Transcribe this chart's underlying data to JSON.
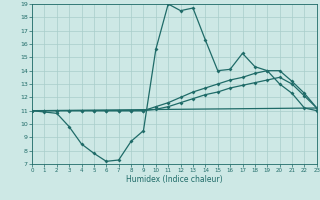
{
  "background_color": "#cde8e5",
  "grid_color": "#a8ceca",
  "line_color": "#1f6b68",
  "xlabel": "Humidex (Indice chaleur)",
  "ylim": [
    7,
    19
  ],
  "xlim": [
    0,
    23
  ],
  "yticks": [
    7,
    8,
    9,
    10,
    11,
    12,
    13,
    14,
    15,
    16,
    17,
    18,
    19
  ],
  "xticks": [
    0,
    1,
    2,
    3,
    4,
    5,
    6,
    7,
    8,
    9,
    10,
    11,
    12,
    13,
    14,
    15,
    16,
    17,
    18,
    19,
    20,
    21,
    22,
    23
  ],
  "curve1_x": [
    0,
    1,
    2,
    3,
    4,
    5,
    6,
    7,
    8,
    9,
    10,
    11,
    12,
    13,
    14,
    15,
    16,
    17,
    18,
    19,
    20,
    21,
    22,
    23
  ],
  "curve1_y": [
    11.0,
    10.9,
    10.8,
    9.8,
    8.5,
    7.8,
    7.2,
    7.3,
    8.7,
    9.5,
    15.6,
    19.0,
    18.5,
    18.7,
    16.3,
    14.0,
    14.1,
    15.3,
    14.3,
    14.0,
    13.0,
    12.3,
    11.2,
    11.0
  ],
  "curve2_x": [
    0,
    1,
    2,
    3,
    4,
    5,
    6,
    7,
    8,
    9,
    10,
    11,
    12,
    13,
    14,
    15,
    16,
    17,
    18,
    19,
    20,
    21,
    22,
    23
  ],
  "curve2_y": [
    11.0,
    11.0,
    11.0,
    11.0,
    11.0,
    11.0,
    11.0,
    11.0,
    11.0,
    11.0,
    11.3,
    11.6,
    12.0,
    12.4,
    12.7,
    13.0,
    13.3,
    13.5,
    13.8,
    14.0,
    14.0,
    13.2,
    12.3,
    11.2
  ],
  "curve3_x": [
    0,
    23
  ],
  "curve3_y": [
    11.0,
    11.2
  ],
  "curve4_x": [
    0,
    1,
    2,
    3,
    4,
    5,
    6,
    7,
    8,
    9,
    10,
    11,
    12,
    13,
    14,
    15,
    16,
    17,
    18,
    19,
    20,
    21,
    22,
    23
  ],
  "curve4_y": [
    11.0,
    11.0,
    11.0,
    11.0,
    11.0,
    11.0,
    11.0,
    11.0,
    11.0,
    11.0,
    11.1,
    11.3,
    11.6,
    11.9,
    12.2,
    12.4,
    12.7,
    12.9,
    13.1,
    13.3,
    13.5,
    13.0,
    12.1,
    11.2
  ]
}
